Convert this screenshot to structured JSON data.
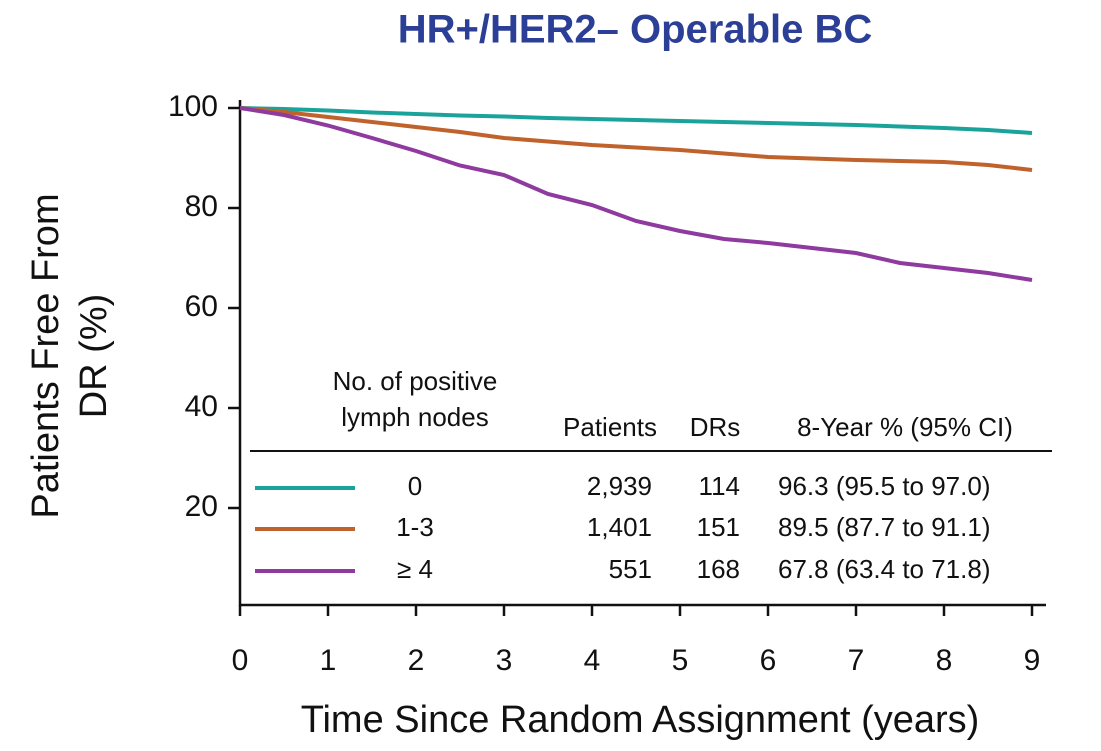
{
  "chart_data": {
    "type": "line",
    "title": "HR+/HER2– Operable BC",
    "y_label": [
      "Patients Free From",
      "DR (%)"
    ],
    "x_label": "Time Since Random Assignment (years)",
    "xlim": [
      0,
      9
    ],
    "ylim": [
      0,
      100
    ],
    "xticks": [
      0,
      1,
      2,
      3,
      4,
      5,
      6,
      7,
      8,
      9
    ],
    "yticks": [
      20,
      40,
      60,
      80,
      100
    ],
    "x": [
      0,
      0.5,
      1,
      1.5,
      2,
      2.5,
      3,
      3.5,
      4,
      4.5,
      5,
      5.5,
      6,
      6.5,
      7,
      7.5,
      8,
      8.5,
      9
    ],
    "series": [
      {
        "name": "0",
        "color": "#1aa39a",
        "values": [
          100,
          99.8,
          99.5,
          99.1,
          98.8,
          98.5,
          98.3,
          98.0,
          97.8,
          97.6,
          97.4,
          97.2,
          97.0,
          96.8,
          96.6,
          96.3,
          96.0,
          95.6,
          95.0
        ]
      },
      {
        "name": "1-3",
        "color": "#c0622b",
        "values": [
          100,
          99.2,
          98.2,
          97.2,
          96.2,
          95.2,
          94.0,
          93.3,
          92.6,
          92.1,
          91.6,
          90.9,
          90.2,
          89.9,
          89.6,
          89.4,
          89.2,
          88.6,
          87.6
        ]
      },
      {
        "name": "≥ 4",
        "color": "#8e3a9f",
        "values": [
          100,
          98.6,
          96.5,
          94.0,
          91.4,
          88.5,
          86.6,
          82.8,
          80.6,
          77.4,
          75.4,
          73.8,
          73.0,
          72.0,
          71.0,
          69.0,
          68.0,
          67.0,
          65.6
        ]
      }
    ],
    "legend_table": {
      "title": [
        "No. of positive",
        "lymph nodes"
      ],
      "columns": [
        "Patients",
        "DRs",
        "8-Year % (95% CI)"
      ],
      "rows": [
        [
          "2,939",
          "114",
          "96.3 (95.5 to 97.0)"
        ],
        [
          "1,401",
          "151",
          "89.5 (87.7 to 91.1)"
        ],
        [
          "551",
          "168",
          "67.8 (63.4 to 71.8)"
        ]
      ]
    }
  }
}
